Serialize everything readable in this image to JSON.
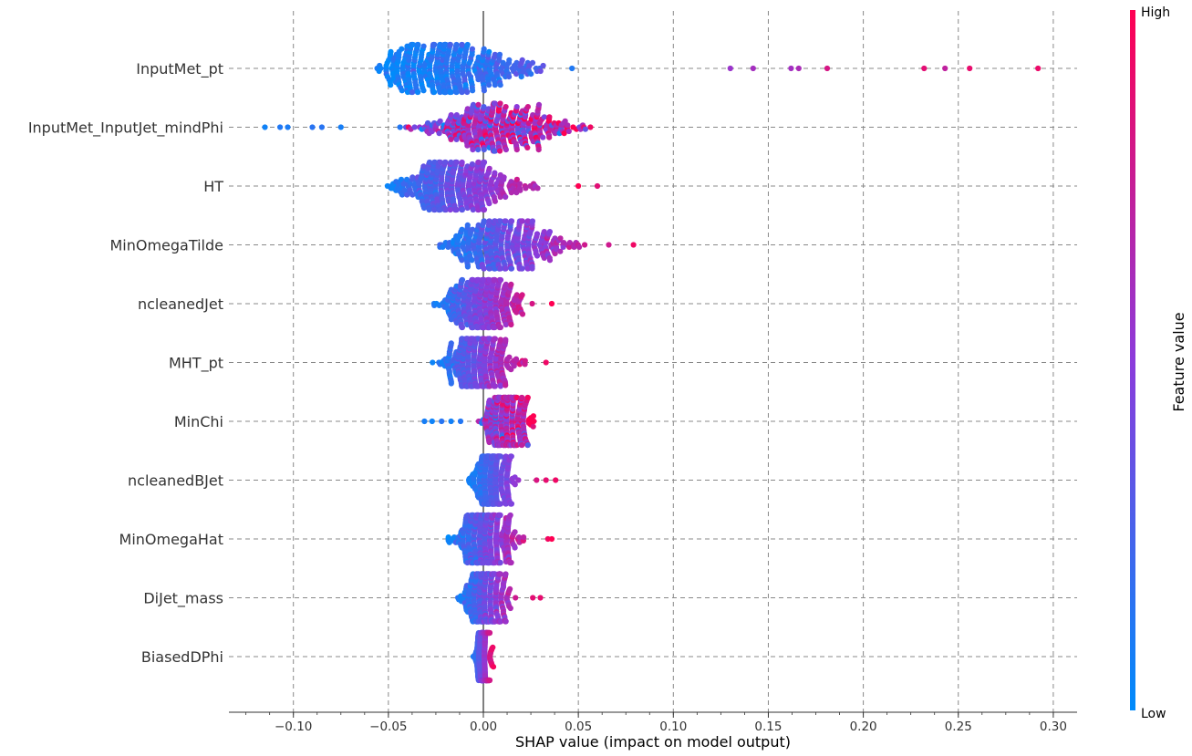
{
  "chart_data": {
    "type": "scatter",
    "subtype": "shap-beeswarm",
    "xlabel": "SHAP value (impact on model output)",
    "xlim": [
      -0.133,
      0.31
    ],
    "xticks": [
      -0.1,
      -0.05,
      0.0,
      0.05,
      0.1,
      0.15,
      0.2,
      0.25,
      0.3
    ],
    "xtick_labels": [
      "−0.10",
      "−0.05",
      "0.00",
      "0.05",
      "0.10",
      "0.15",
      "0.20",
      "0.25",
      "0.30"
    ],
    "grid": "dashed vertical at each tick and dashed horizontal per feature",
    "features": [
      {
        "name": "InputMet_pt",
        "min": -0.065,
        "max": 0.292,
        "spread": 0.95,
        "corr": 1.0,
        "noise": 0.15,
        "bulk": [
          -0.06,
          0.06
        ],
        "tail": [
          0.13,
          0.142,
          0.162,
          0.166,
          0.181,
          0.232,
          0.243,
          0.256,
          0.292
        ]
      },
      {
        "name": "InputMet_InputJet_mindPhi",
        "min": -0.115,
        "max": 0.065,
        "spread": 0.7,
        "corr": 0.6,
        "noise": 0.45,
        "bulk": [
          -0.05,
          0.065
        ],
        "tail": [
          -0.115,
          -0.107,
          -0.103,
          -0.09,
          -0.085,
          -0.075
        ]
      },
      {
        "name": "HT",
        "min": -0.06,
        "max": 0.06,
        "spread": 0.75,
        "corr": 1.0,
        "noise": 0.12,
        "bulk": [
          -0.055,
          0.04
        ],
        "tail": [
          0.05,
          0.06
        ]
      },
      {
        "name": "MinOmegaTilde",
        "min": -0.028,
        "max": 0.079,
        "spread": 0.75,
        "corr": 1.0,
        "noise": 0.15,
        "bulk": [
          -0.028,
          0.06
        ],
        "tail": [
          0.066,
          0.079
        ]
      },
      {
        "name": "ncleanedJet",
        "min": -0.031,
        "max": 0.036,
        "spread": 0.6,
        "corr": 1.0,
        "noise": 0.12,
        "bulk": [
          -0.031,
          0.03
        ],
        "tail": [
          0.036
        ]
      },
      {
        "name": "MHT_pt",
        "min": -0.029,
        "max": 0.033,
        "spread": 0.6,
        "corr": 1.0,
        "noise": 0.12,
        "bulk": [
          -0.029,
          0.025
        ],
        "tail": [
          0.033
        ]
      },
      {
        "name": "MinChi",
        "min": -0.031,
        "max": 0.032,
        "spread": 0.6,
        "corr": 0.7,
        "noise": 0.35,
        "bulk": [
          -0.005,
          0.03
        ],
        "tail": [
          -0.031,
          -0.027,
          -0.022,
          -0.017,
          -0.012
        ]
      },
      {
        "name": "ncleanedBJet",
        "min": -0.01,
        "max": 0.04,
        "spread": 0.5,
        "corr": 1.0,
        "noise": 0.08,
        "bulk": [
          -0.01,
          0.02
        ],
        "tail": [
          0.028,
          0.033,
          0.038
        ]
      },
      {
        "name": "MinOmegaHat",
        "min": -0.022,
        "max": 0.036,
        "spread": 0.6,
        "corr": 1.0,
        "noise": 0.15,
        "bulk": [
          -0.022,
          0.025
        ],
        "tail": [
          0.034,
          0.036
        ]
      },
      {
        "name": "DiJet_mass",
        "min": -0.016,
        "max": 0.03,
        "spread": 0.6,
        "corr": 1.0,
        "noise": 0.15,
        "bulk": [
          -0.016,
          0.02
        ],
        "tail": [
          0.026,
          0.03
        ]
      },
      {
        "name": "BiasedDPhi",
        "min": -0.006,
        "max": 0.006,
        "spread": 0.35,
        "corr": 1.0,
        "noise": 0.05,
        "bulk": [
          -0.006,
          0.006
        ],
        "tail": []
      }
    ],
    "colorbar": {
      "title": "Feature value",
      "high_label": "High",
      "low_label": "Low",
      "low_color": "#008bfb",
      "mid_color": "#8c3bdb",
      "high_color": "#ff0052"
    },
    "colors": {
      "grid": "#888888",
      "zero_line": "#555555",
      "text": "#333333"
    }
  }
}
